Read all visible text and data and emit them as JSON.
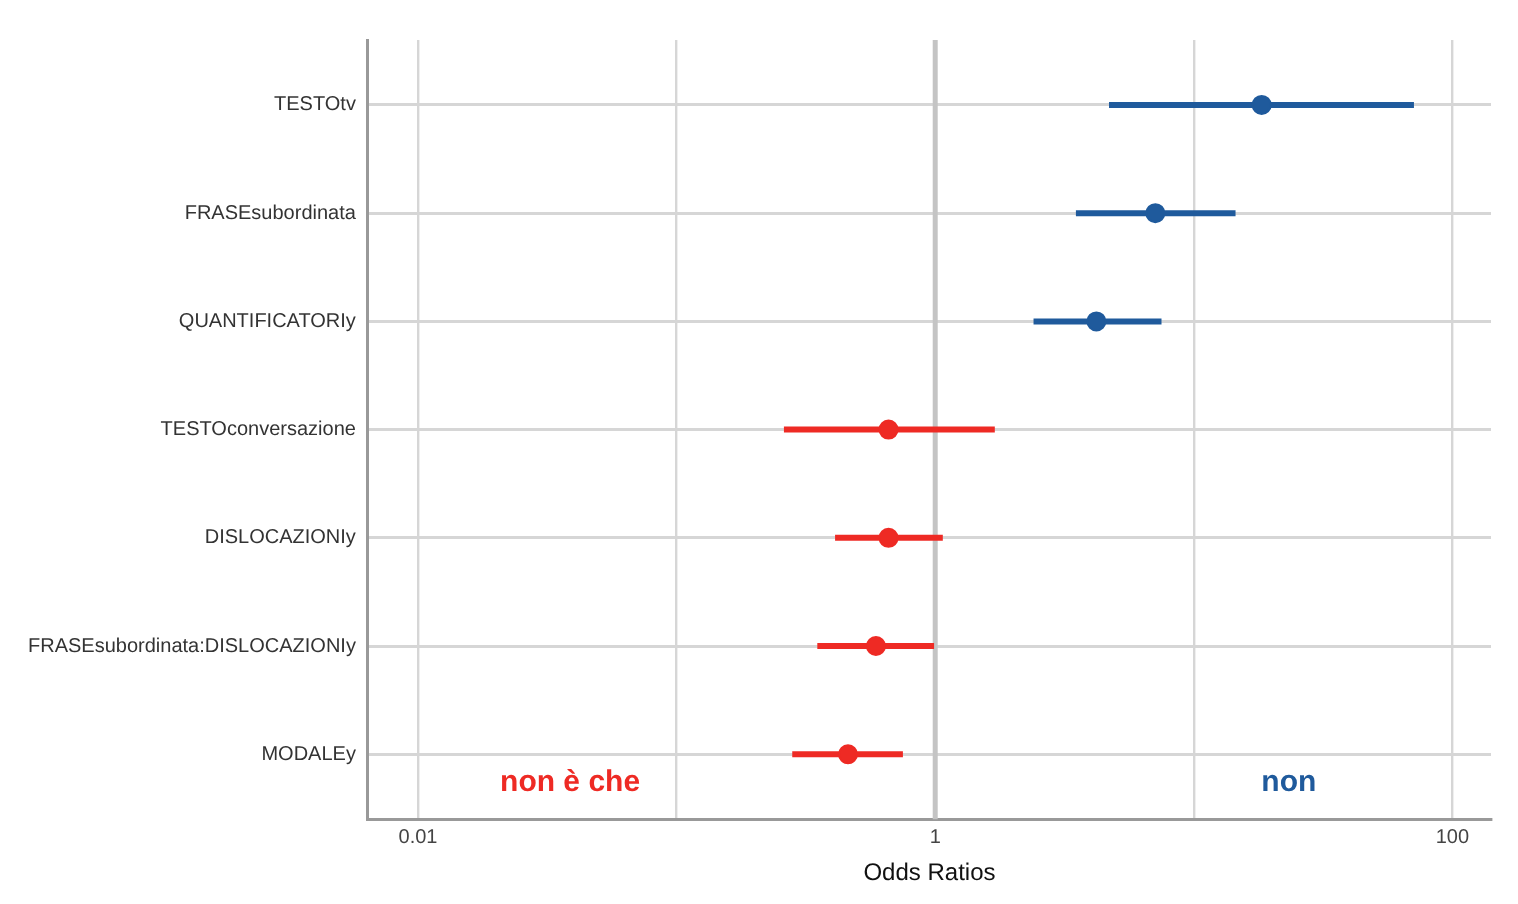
{
  "chart_data": {
    "type": "scatter",
    "orientation": "horizontal",
    "xlabel": "Odds Ratios",
    "categories": [
      "TESTOtv",
      "FRASEsubordinata",
      "QUANTIFICATORIy",
      "TESTOconversazione",
      "DISLOCAZIONIy",
      "FRASEsubordinata:DISLOCAZIONIy",
      "MODALEy"
    ],
    "series": [
      {
        "name": "non è che",
        "color": "#ee2a24",
        "values": [
          null,
          null,
          null,
          0.66,
          0.66,
          0.59,
          0.46
        ],
        "errors": [
          null,
          null,
          null,
          [
            0.26,
            1.7
          ],
          [
            0.41,
            1.07
          ],
          [
            0.35,
            0.99
          ],
          [
            0.28,
            0.75
          ]
        ]
      },
      {
        "name": "non",
        "color": "#1f5a9c",
        "values": [
          18.3,
          7.1,
          4.2,
          null,
          null,
          null,
          null
        ],
        "errors": [
          [
            4.7,
            71
          ],
          [
            3.5,
            14.5
          ],
          [
            2.4,
            7.5
          ],
          null,
          null,
          null,
          null
        ]
      }
    ],
    "log": "x",
    "xlim": [
      0.0064,
      141
    ],
    "xticks": [
      0.01,
      {
        "value": 0.1,
        "label": null
      },
      1,
      {
        "value": 10,
        "label": null
      },
      100
    ],
    "ref_lines": [
      {
        "axis": "x",
        "value": 1,
        "color": "#c4c4c4"
      }
    ],
    "grid": true,
    "legend": false,
    "marker": "circle"
  }
}
